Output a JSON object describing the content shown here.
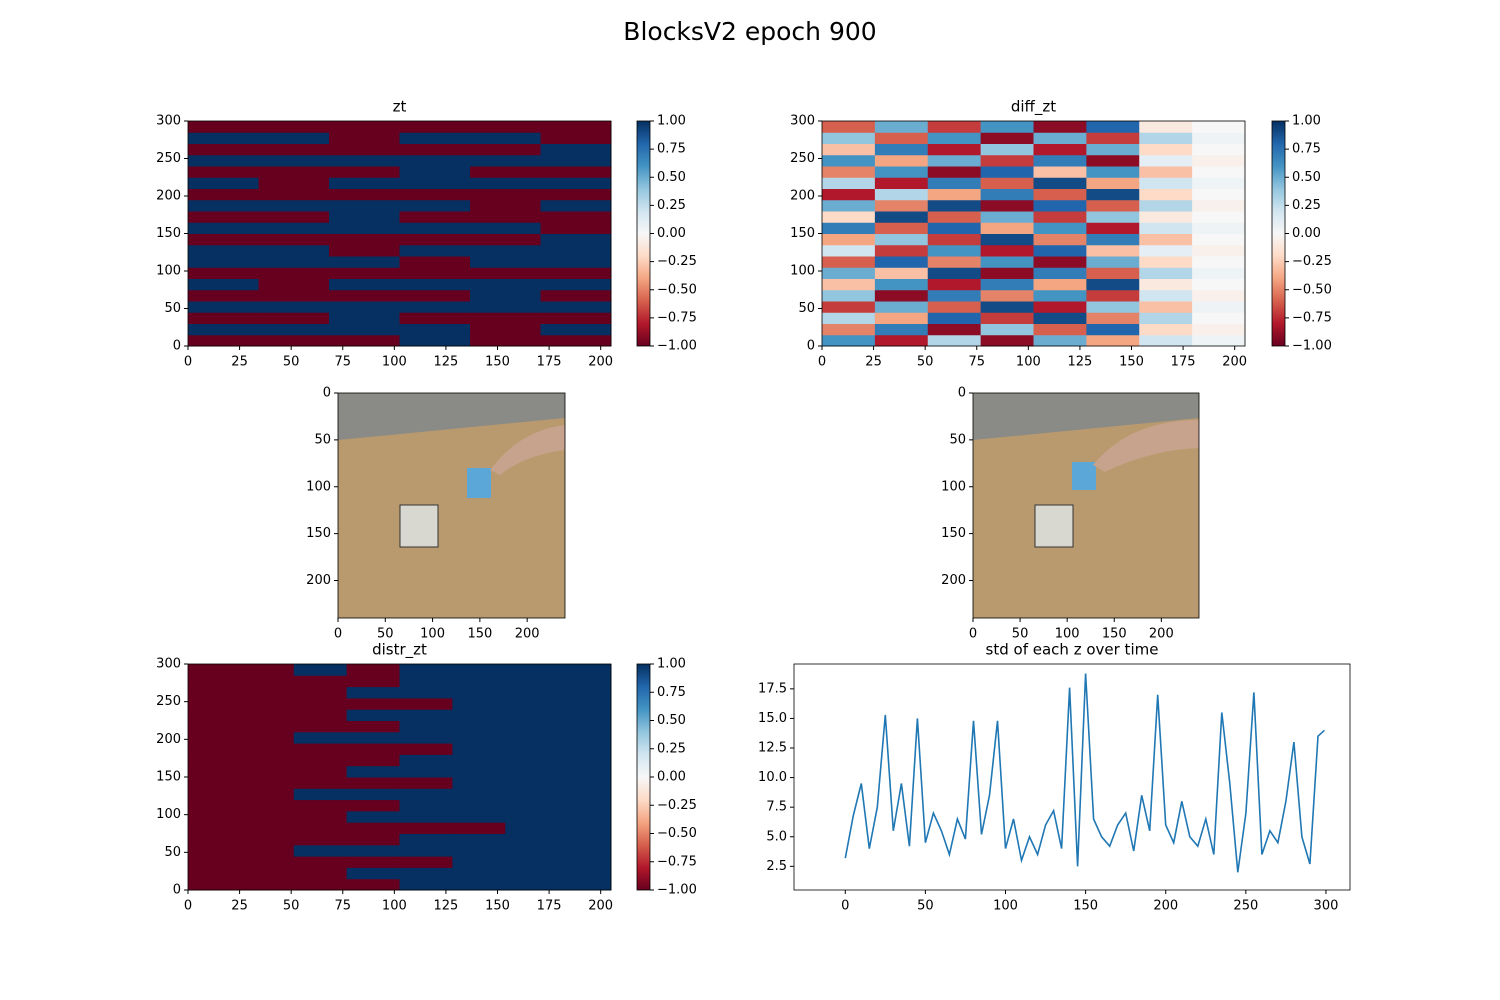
{
  "title": "BlocksV2 epoch 900",
  "chart_data": [
    {
      "type": "heatmap",
      "title": "zt",
      "colormap": "RdBu",
      "xlim": [
        0,
        205
      ],
      "ylim": [
        0,
        300
      ],
      "xticks": [
        0,
        25,
        50,
        75,
        100,
        125,
        150,
        175,
        200
      ],
      "yticks": [
        0,
        50,
        100,
        150,
        200,
        250,
        300
      ],
      "colorbar": {
        "clim": [
          -1,
          1
        ],
        "ticks": [
          {
            "value": 1,
            "label": "1.00"
          },
          {
            "value": 0.75,
            "label": "0.75"
          },
          {
            "value": 0.5,
            "label": "0.50"
          },
          {
            "value": 0.25,
            "label": "0.25"
          },
          {
            "value": 0,
            "label": "0.00"
          },
          {
            "value": -0.25,
            "label": "−0.25"
          },
          {
            "value": -0.5,
            "label": "−0.50"
          },
          {
            "value": -0.75,
            "label": "−0.75"
          },
          {
            "value": -1,
            "label": "−1.00"
          }
        ]
      },
      "z": [
        [
          -1,
          -1,
          -1,
          1,
          -1,
          -1
        ],
        [
          1,
          1,
          1,
          1,
          -1,
          1
        ],
        [
          -1,
          -1,
          1,
          -1,
          -1,
          -1
        ],
        [
          1,
          1,
          1,
          1,
          1,
          1
        ],
        [
          -1,
          -1,
          -1,
          -1,
          1,
          -1
        ],
        [
          1,
          -1,
          1,
          1,
          1,
          1
        ],
        [
          -1,
          -1,
          -1,
          -1,
          -1,
          -1
        ],
        [
          1,
          1,
          1,
          -1,
          1,
          1
        ],
        [
          1,
          1,
          -1,
          1,
          1,
          1
        ],
        [
          -1,
          -1,
          -1,
          -1,
          -1,
          1
        ],
        [
          1,
          1,
          1,
          1,
          1,
          -1
        ],
        [
          -1,
          -1,
          1,
          -1,
          -1,
          -1
        ],
        [
          1,
          1,
          1,
          1,
          -1,
          1
        ],
        [
          -1,
          -1,
          -1,
          -1,
          -1,
          -1
        ],
        [
          1,
          -1,
          1,
          1,
          1,
          1
        ],
        [
          -1,
          -1,
          -1,
          1,
          -1,
          -1
        ],
        [
          1,
          1,
          1,
          1,
          1,
          1
        ],
        [
          -1,
          -1,
          -1,
          -1,
          -1,
          1
        ],
        [
          1,
          1,
          -1,
          1,
          1,
          -1
        ],
        [
          -1,
          -1,
          -1,
          -1,
          -1,
          -1
        ]
      ]
    },
    {
      "type": "heatmap",
      "title": "diff_zt",
      "colormap": "RdBu",
      "xlim": [
        0,
        205
      ],
      "ylim": [
        0,
        300
      ],
      "xticks": [
        0,
        25,
        50,
        75,
        100,
        125,
        150,
        175,
        200
      ],
      "yticks": [
        0,
        50,
        100,
        150,
        200,
        250,
        300
      ],
      "colorbar": {
        "clim": [
          -1,
          1
        ],
        "ticks": [
          {
            "value": 1,
            "label": "1.00"
          },
          {
            "value": 0.75,
            "label": "0.75"
          },
          {
            "value": 0.5,
            "label": "0.50"
          },
          {
            "value": 0.25,
            "label": "0.25"
          },
          {
            "value": 0,
            "label": "0.00"
          },
          {
            "value": -0.25,
            "label": "−0.25"
          },
          {
            "value": -0.5,
            "label": "−0.50"
          },
          {
            "value": -0.75,
            "label": "−0.75"
          },
          {
            "value": -1,
            "label": "−1.00"
          }
        ]
      },
      "z": [
        [
          0.6,
          -0.8,
          0.3,
          -0.9,
          0.5,
          -0.4,
          0.2,
          0.05
        ],
        [
          -0.5,
          0.7,
          -0.9,
          0.4,
          -0.6,
          0.8,
          -0.2,
          -0.05
        ],
        [
          0.3,
          -0.4,
          0.8,
          -0.7,
          0.9,
          -0.5,
          0.3,
          0.0
        ],
        [
          -0.7,
          0.5,
          -0.6,
          0.9,
          -0.8,
          0.4,
          -0.3,
          0.05
        ],
        [
          0.4,
          -0.9,
          0.7,
          -0.5,
          0.6,
          -0.7,
          0.2,
          -0.05
        ],
        [
          -0.3,
          0.6,
          -0.8,
          0.7,
          -0.4,
          0.9,
          -0.1,
          0.0
        ],
        [
          0.5,
          -0.3,
          0.9,
          -0.9,
          0.7,
          -0.6,
          0.3,
          0.05
        ],
        [
          -0.6,
          0.8,
          -0.5,
          0.6,
          -0.9,
          0.5,
          -0.2,
          0.0
        ],
        [
          0.2,
          -0.7,
          0.6,
          -0.8,
          0.8,
          -0.3,
          0.1,
          -0.05
        ],
        [
          -0.4,
          0.4,
          -0.7,
          0.9,
          -0.5,
          0.7,
          -0.3,
          0.0
        ],
        [
          0.7,
          -0.6,
          0.8,
          -0.4,
          0.6,
          -0.8,
          0.2,
          0.05
        ],
        [
          -0.2,
          0.9,
          -0.6,
          0.5,
          -0.7,
          0.4,
          -0.1,
          0.0
        ],
        [
          0.5,
          -0.5,
          0.9,
          -0.9,
          0.8,
          -0.6,
          0.3,
          -0.05
        ],
        [
          -0.8,
          0.3,
          -0.4,
          0.7,
          -0.6,
          0.9,
          -0.2,
          0.0
        ],
        [
          0.3,
          -0.8,
          0.7,
          -0.6,
          0.9,
          -0.4,
          0.2,
          0.05
        ],
        [
          -0.5,
          0.6,
          -0.9,
          0.8,
          -0.3,
          0.6,
          -0.3,
          0.0
        ],
        [
          0.6,
          -0.4,
          0.5,
          -0.7,
          0.7,
          -0.9,
          0.1,
          -0.05
        ],
        [
          -0.3,
          0.7,
          -0.8,
          0.4,
          -0.8,
          0.5,
          -0.2,
          0.0
        ],
        [
          0.4,
          -0.6,
          0.6,
          -0.9,
          0.5,
          -0.7,
          0.3,
          0.05
        ],
        [
          -0.6,
          0.5,
          -0.7,
          0.6,
          -0.9,
          0.8,
          -0.1,
          0.0
        ]
      ]
    },
    {
      "type": "image",
      "xlim": [
        0,
        240
      ],
      "ylim": [
        240,
        0
      ],
      "xticks": [
        0,
        50,
        100,
        150,
        200
      ],
      "yticks": [
        0,
        50,
        100,
        150,
        200
      ]
    },
    {
      "type": "image",
      "xlim": [
        0,
        240
      ],
      "ylim": [
        240,
        0
      ],
      "xticks": [
        0,
        50,
        100,
        150,
        200
      ],
      "yticks": [
        0,
        50,
        100,
        150,
        200
      ]
    },
    {
      "type": "heatmap",
      "title": "distr_zt",
      "colormap": "RdBu",
      "xlim": [
        0,
        205
      ],
      "ylim": [
        0,
        300
      ],
      "xticks": [
        0,
        25,
        50,
        75,
        100,
        125,
        150,
        175,
        200
      ],
      "yticks": [
        0,
        50,
        100,
        150,
        200,
        250,
        300
      ],
      "colorbar": {
        "clim": [
          -1,
          1
        ],
        "ticks": [
          {
            "value": 1,
            "label": "1.00"
          },
          {
            "value": 0.75,
            "label": "0.75"
          },
          {
            "value": 0.5,
            "label": "0.50"
          },
          {
            "value": 0.25,
            "label": "0.25"
          },
          {
            "value": 0,
            "label": "0.00"
          },
          {
            "value": -0.25,
            "label": "−0.25"
          },
          {
            "value": -0.5,
            "label": "−0.50"
          },
          {
            "value": -0.75,
            "label": "−0.75"
          },
          {
            "value": -1,
            "label": "−1.00"
          }
        ]
      },
      "z": [
        [
          -1,
          -1,
          -1,
          -1,
          1,
          1,
          1,
          1
        ],
        [
          -1,
          -1,
          -1,
          1,
          1,
          1,
          1,
          1
        ],
        [
          -1,
          -1,
          -1,
          -1,
          -1,
          1,
          1,
          1
        ],
        [
          -1,
          -1,
          1,
          1,
          1,
          1,
          1,
          1
        ],
        [
          -1,
          -1,
          -1,
          -1,
          1,
          1,
          1,
          1
        ],
        [
          -1,
          -1,
          -1,
          -1,
          -1,
          -1,
          1,
          1
        ],
        [
          -1,
          -1,
          -1,
          1,
          1,
          1,
          1,
          1
        ],
        [
          -1,
          -1,
          -1,
          -1,
          1,
          1,
          1,
          1
        ],
        [
          -1,
          -1,
          1,
          1,
          1,
          1,
          1,
          1
        ],
        [
          -1,
          -1,
          -1,
          -1,
          -1,
          1,
          1,
          1
        ],
        [
          -1,
          -1,
          -1,
          1,
          1,
          1,
          1,
          1
        ],
        [
          -1,
          -1,
          -1,
          -1,
          1,
          1,
          1,
          1
        ],
        [
          -1,
          -1,
          -1,
          -1,
          -1,
          1,
          1,
          1
        ],
        [
          -1,
          -1,
          1,
          1,
          1,
          1,
          1,
          1
        ],
        [
          -1,
          -1,
          -1,
          -1,
          1,
          1,
          1,
          1
        ],
        [
          -1,
          -1,
          -1,
          1,
          1,
          1,
          1,
          1
        ],
        [
          -1,
          -1,
          -1,
          -1,
          -1,
          1,
          1,
          1
        ],
        [
          -1,
          -1,
          -1,
          1,
          1,
          1,
          1,
          1
        ],
        [
          -1,
          -1,
          -1,
          -1,
          1,
          1,
          1,
          1
        ],
        [
          -1,
          -1,
          1,
          -1,
          1,
          1,
          1,
          1
        ]
      ]
    },
    {
      "type": "line",
      "title": "std of each z over time",
      "color": "#1f77b4",
      "xlim": [
        -32,
        315
      ],
      "ylim": [
        0.5,
        19.6
      ],
      "xticks": [
        0,
        50,
        100,
        150,
        200,
        250,
        300
      ],
      "yticks": [
        2.5,
        {
          "value": 5,
          "label": "5.0"
        },
        7.5,
        {
          "value": 10,
          "label": "10.0"
        },
        12.5,
        {
          "value": 15,
          "label": "15.0"
        },
        17.5
      ],
      "x": [
        0,
        5,
        10,
        15,
        20,
        25,
        30,
        35,
        40,
        45,
        50,
        55,
        60,
        65,
        70,
        75,
        80,
        85,
        90,
        95,
        100,
        105,
        110,
        115,
        120,
        125,
        130,
        135,
        140,
        145,
        150,
        155,
        160,
        165,
        170,
        175,
        180,
        185,
        190,
        195,
        200,
        205,
        210,
        215,
        220,
        225,
        230,
        235,
        240,
        245,
        250,
        255,
        260,
        265,
        270,
        275,
        280,
        285,
        290,
        295,
        299
      ],
      "values": [
        3.2,
        6.8,
        9.5,
        4.0,
        7.5,
        15.3,
        5.5,
        9.5,
        4.2,
        15.0,
        4.5,
        7.0,
        5.5,
        3.5,
        6.5,
        4.8,
        14.8,
        5.2,
        8.5,
        14.8,
        4.0,
        6.5,
        3.0,
        5.0,
        3.5,
        6.0,
        7.2,
        4.0,
        17.6,
        2.5,
        18.8,
        6.5,
        5.0,
        4.2,
        6.0,
        7.0,
        3.8,
        8.5,
        5.5,
        17.0,
        6.0,
        4.5,
        8.0,
        5.0,
        4.2,
        6.5,
        3.5,
        15.5,
        9.5,
        2.0,
        7.0,
        17.2,
        3.5,
        5.5,
        4.5,
        8.0,
        13.0,
        5.0,
        2.7,
        13.5,
        14.0
      ]
    }
  ]
}
